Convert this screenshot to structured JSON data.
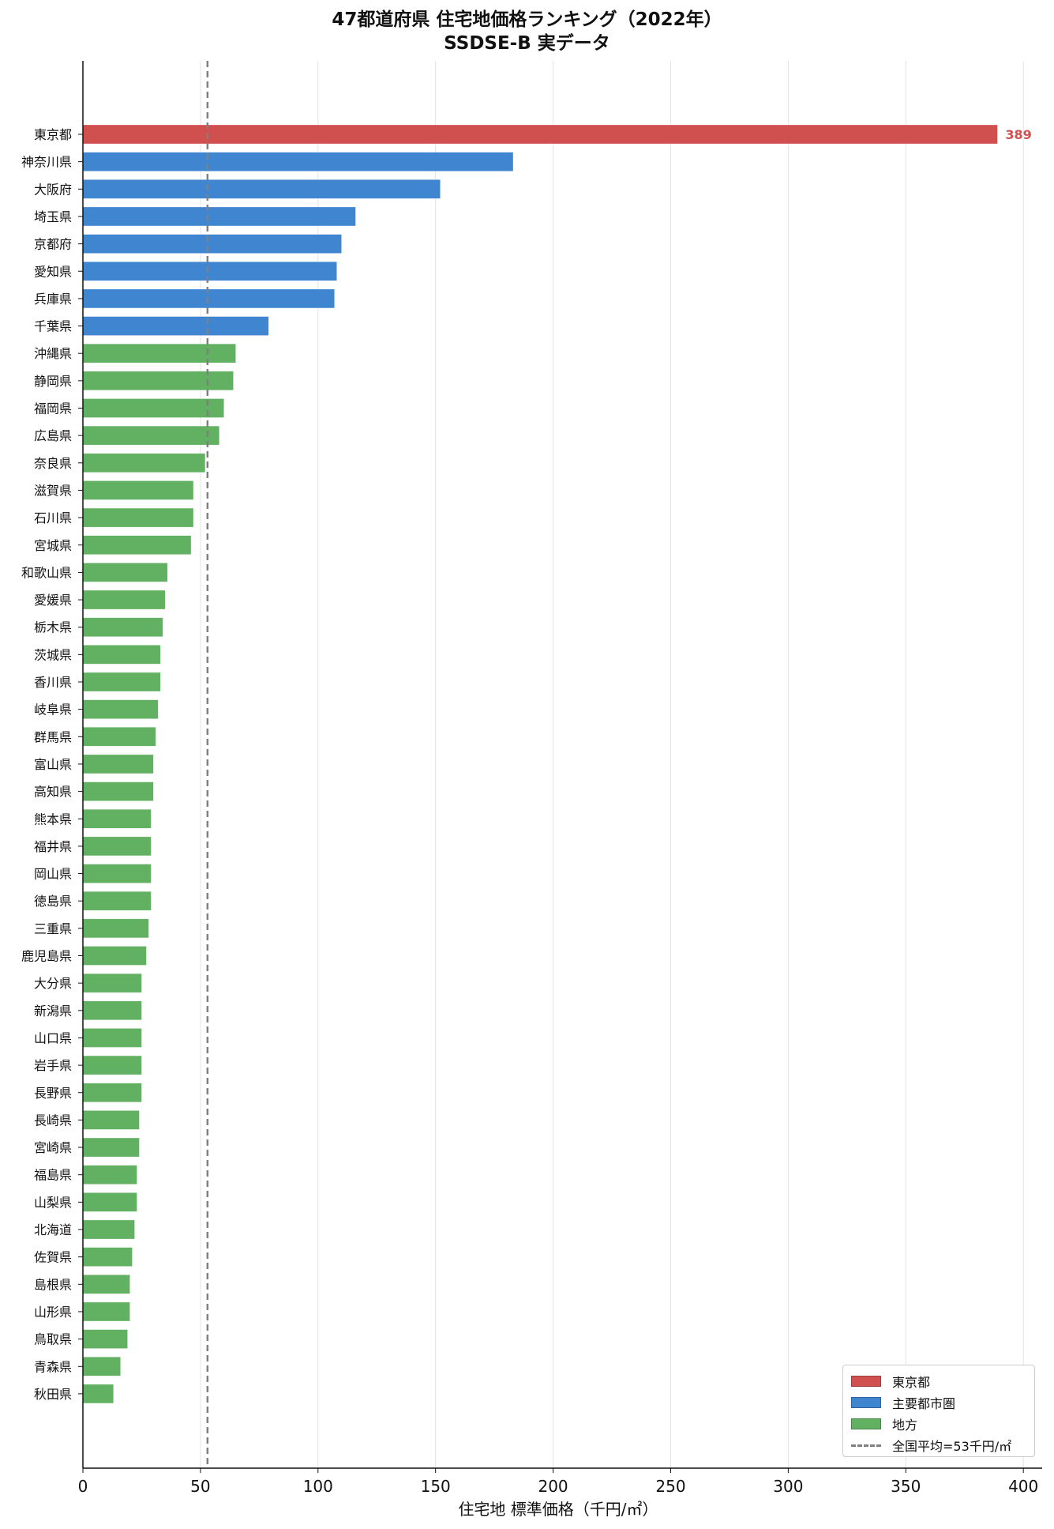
{
  "chart_data": {
    "type": "bar",
    "orientation": "horizontal",
    "title": "47都道府県 住宅地価格ランキング（2022年）",
    "subtitle": "SSDSE-B 実データ",
    "xlabel": "住宅地 標準価格（千円/㎡）",
    "ylabel": "",
    "xlim": [
      0,
      408
    ],
    "xticks": [
      0,
      50,
      100,
      150,
      200,
      250,
      300,
      350,
      400
    ],
    "grid": "vertical",
    "legend_position": "lower-right",
    "colors": {
      "tokyo": "#d05050",
      "major": "#3f85d0",
      "local": "#62b062",
      "mean": "#808080"
    },
    "legend": [
      {
        "label": "東京都",
        "group": "tokyo"
      },
      {
        "label": "主要都市圏",
        "group": "major"
      },
      {
        "label": "地方",
        "group": "local"
      },
      {
        "label": "全国平均=53千円/㎡",
        "group": "mean"
      }
    ],
    "mean_line": 53,
    "data_labels": [
      {
        "category": "東京都",
        "text": "389"
      }
    ],
    "categories": [
      "東京都",
      "神奈川県",
      "大阪府",
      "埼玉県",
      "京都府",
      "愛知県",
      "兵庫県",
      "千葉県",
      "沖縄県",
      "静岡県",
      "福岡県",
      "広島県",
      "奈良県",
      "滋賀県",
      "石川県",
      "宮城県",
      "和歌山県",
      "愛媛県",
      "栃木県",
      "茨城県",
      "香川県",
      "岐阜県",
      "群馬県",
      "富山県",
      "高知県",
      "熊本県",
      "福井県",
      "岡山県",
      "徳島県",
      "三重県",
      "鹿児島県",
      "大分県",
      "新潟県",
      "山口県",
      "岩手県",
      "長野県",
      "長崎県",
      "宮崎県",
      "福島県",
      "山梨県",
      "北海道",
      "佐賀県",
      "島根県",
      "山形県",
      "鳥取県",
      "青森県",
      "秋田県"
    ],
    "values": [
      389,
      183,
      152,
      116,
      110,
      108,
      107,
      79,
      65,
      64,
      60,
      58,
      52,
      47,
      47,
      46,
      36,
      35,
      34,
      33,
      33,
      32,
      31,
      30,
      30,
      29,
      29,
      29,
      29,
      28,
      27,
      25,
      25,
      25,
      25,
      25,
      24,
      24,
      23,
      23,
      22,
      21,
      20,
      20,
      19,
      16,
      13
    ],
    "groups": [
      "tokyo",
      "major",
      "major",
      "major",
      "major",
      "major",
      "major",
      "major",
      "local",
      "local",
      "local",
      "local",
      "local",
      "local",
      "local",
      "local",
      "local",
      "local",
      "local",
      "local",
      "local",
      "local",
      "local",
      "local",
      "local",
      "local",
      "local",
      "local",
      "local",
      "local",
      "local",
      "local",
      "local",
      "local",
      "local",
      "local",
      "local",
      "local",
      "local",
      "local",
      "local",
      "local",
      "local",
      "local",
      "local",
      "local",
      "local"
    ]
  }
}
